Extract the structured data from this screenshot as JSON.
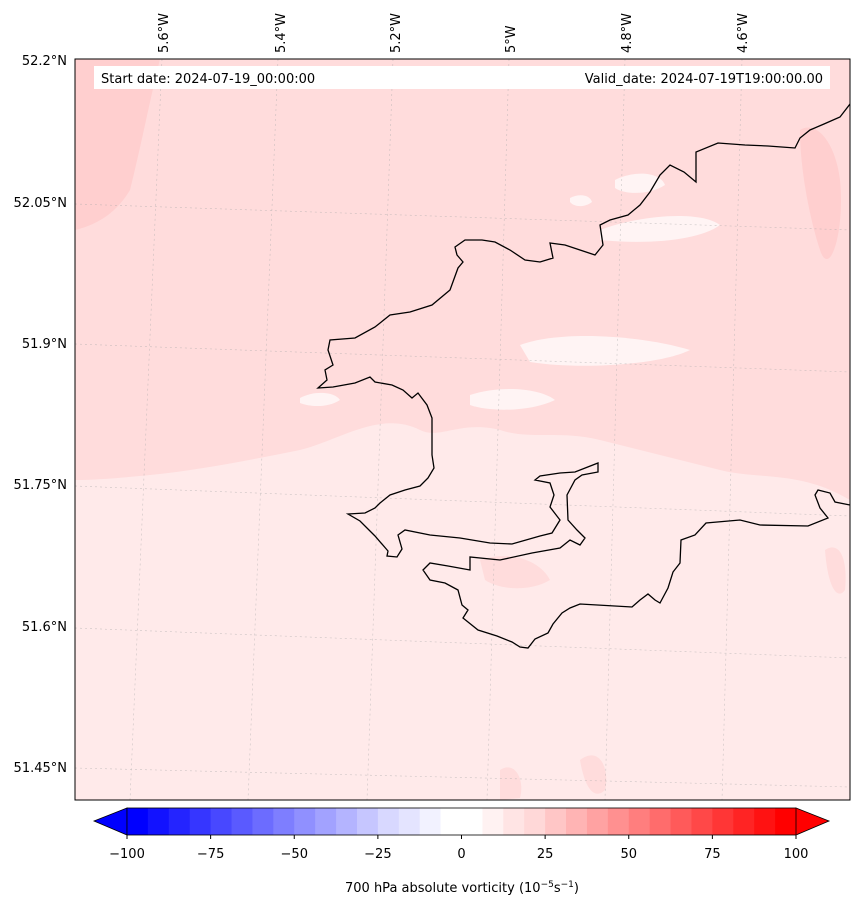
{
  "map": {
    "start_date": "Start date: 2024-07-19_00:00:00",
    "valid_date": "Valid_date: 2024-07-19T19:00:00.00",
    "lon_labels": [
      "5.6°W",
      "5.4°W",
      "5.2°W",
      "5°W",
      "4.8°W",
      "4.6°W"
    ],
    "lat_labels": [
      "52.2°N",
      "52.05°N",
      "51.9°N",
      "51.75°N",
      "51.6°N",
      "51.45°N"
    ],
    "field_colors": {
      "base": "#ffeaea",
      "moderate": "#ffdcdc",
      "strong": "#ffcfcf",
      "weak": "#fff4f4",
      "coast": "#000000"
    }
  },
  "colorbar": {
    "label_main": "700 hPa absolute vorticity (10",
    "label_exp1": "−5",
    "label_mid": "s",
    "label_exp2": "−1",
    "label_end": ")",
    "ticks": [
      "−100",
      "−75",
      "−50",
      "−25",
      "0",
      "25",
      "50",
      "75",
      "100"
    ],
    "colors": [
      "#0000ff",
      "#1212ff",
      "#2424ff",
      "#3636ff",
      "#4848ff",
      "#5a5aff",
      "#6c6cff",
      "#7e7eff",
      "#9090ff",
      "#a2a2ff",
      "#b4b4ff",
      "#c6c6ff",
      "#d8d8ff",
      "#e4e4ff",
      "#f2f2ff",
      "#ffffff",
      "#ffffff",
      "#fff2f2",
      "#ffe4e4",
      "#ffd8d8",
      "#ffc6c6",
      "#ffb4b4",
      "#ffa2a2",
      "#ff9090",
      "#ff7e7e",
      "#ff6c6c",
      "#ff5a5a",
      "#ff4848",
      "#ff3636",
      "#ff2424",
      "#ff1212",
      "#ff0000"
    ],
    "under_color": "#0000ff",
    "over_color": "#ff0000"
  }
}
